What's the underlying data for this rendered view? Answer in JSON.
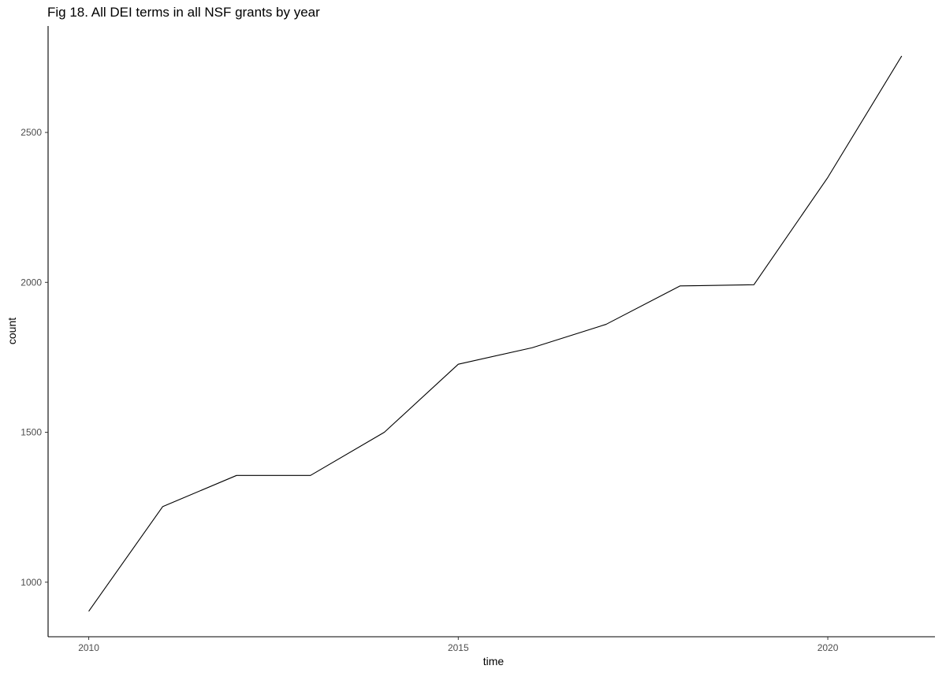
{
  "chart_data": {
    "type": "line",
    "title": "Fig 18. All DEI terms in all NSF grants by year",
    "xlabel": "time",
    "ylabel": "count",
    "x": [
      2010,
      2011,
      2012,
      2013,
      2014,
      2015,
      2016,
      2017,
      2018,
      2019,
      2020,
      2021
    ],
    "series": [
      {
        "values": [
          903,
          1252,
          1356,
          1356,
          1500,
          1727,
          1782,
          1860,
          1988,
          1992,
          2350,
          2755
        ]
      }
    ],
    "xlim": [
      2009.45,
      2021.45
    ],
    "ylim": [
      818,
      2855
    ],
    "xticks": [
      2010,
      2015,
      2020
    ],
    "yticks": [
      1000,
      1500,
      2000,
      2500
    ],
    "grid": false,
    "line_color": "#000000"
  }
}
